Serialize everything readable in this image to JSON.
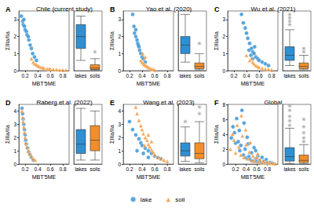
{
  "chart_data": [
    {
      "type": "scatter",
      "panel": "A",
      "title": "Chile (current study)",
      "xlabel": "MBT'5ME",
      "ylabel": "ΣIIIa/IIa",
      "xlim": [
        0.1,
        0.9
      ],
      "xticks": [
        0.2,
        0.4,
        0.6,
        0.8
      ],
      "ylim": [
        0,
        3.5
      ],
      "yticks": [
        0,
        1,
        2,
        3
      ],
      "legend": "bottom",
      "series": [
        {
          "name": "lake",
          "color": "#2f8fd3",
          "marker": "circle",
          "x": [
            0.14,
            0.16,
            0.17,
            0.18,
            0.19,
            0.2,
            0.22,
            0.23,
            0.25,
            0.26,
            0.28,
            0.3,
            0.32,
            0.35,
            0.38
          ],
          "values": [
            3.2,
            2.9,
            2.7,
            3.0,
            2.6,
            2.4,
            2.3,
            2.1,
            2.0,
            1.8,
            1.5,
            1.3,
            1.0,
            0.8,
            0.6
          ]
        },
        {
          "name": "soil",
          "color": "#f28e2b",
          "marker": "triangle",
          "x": [
            0.3,
            0.33,
            0.35,
            0.38,
            0.4,
            0.42,
            0.45,
            0.48,
            0.5,
            0.55,
            0.58,
            0.6,
            0.65,
            0.7,
            0.75,
            0.8,
            0.85
          ],
          "values": [
            0.7,
            0.5,
            0.4,
            0.35,
            0.3,
            0.25,
            0.2,
            0.18,
            0.15,
            0.12,
            0.1,
            0.1,
            0.08,
            0.07,
            0.05,
            0.05,
            0.04
          ]
        }
      ],
      "boxplot": {
        "categories": [
          "lakes",
          "soils"
        ],
        "colors": [
          "#2f8fd3",
          "#f28e2b"
        ],
        "marker": "asterisk",
        "stats": [
          [
            0.6,
            1.3,
            2.0,
            2.7,
            3.2
          ],
          [
            0.04,
            0.07,
            0.15,
            0.35,
            0.7
          ]
        ],
        "outliers": [
          [],
          [
            1.1
          ]
        ]
      }
    },
    {
      "type": "scatter",
      "panel": "B",
      "title": "Yao et al. (2020)",
      "xlabel": "MBT'5ME",
      "ylabel": "ΣIIIa/IIa",
      "xlim": [
        0.1,
        0.9
      ],
      "xticks": [
        0.2,
        0.4,
        0.6,
        0.8
      ],
      "ylim": [
        0,
        3.5
      ],
      "yticks": [
        0,
        1,
        2,
        3
      ],
      "legend": "bottom",
      "series": [
        {
          "name": "lake",
          "color": "#2f8fd3",
          "marker": "circle",
          "x": [
            0.25,
            0.27,
            0.28,
            0.3,
            0.3,
            0.32,
            0.33,
            0.34,
            0.35,
            0.36,
            0.38,
            0.4,
            0.42,
            0.45
          ],
          "values": [
            3.3,
            2.6,
            2.2,
            2.0,
            2.4,
            1.8,
            1.6,
            1.5,
            1.4,
            1.2,
            1.0,
            0.8,
            0.7,
            0.5
          ]
        },
        {
          "name": "soil",
          "color": "#f28e2b",
          "marker": "triangle",
          "x": [
            0.38,
            0.4,
            0.41,
            0.42,
            0.44,
            0.45,
            0.46,
            0.48,
            0.5,
            0.52,
            0.55,
            0.58,
            0.6
          ],
          "values": [
            0.6,
            0.5,
            1.0,
            0.4,
            0.35,
            0.8,
            0.3,
            0.25,
            0.2,
            0.15,
            0.1,
            0.08,
            0.05
          ]
        }
      ],
      "boxplot": {
        "categories": [
          "lakes",
          "soils"
        ],
        "colors": [
          "#2f8fd3",
          "#f28e2b"
        ],
        "marker": "asterisk",
        "stats": [
          [
            0.5,
            1.0,
            1.5,
            2.0,
            3.3
          ],
          [
            0.05,
            0.12,
            0.25,
            0.45,
            1.0
          ]
        ],
        "outliers": [
          [],
          [
            1.6
          ]
        ]
      }
    },
    {
      "type": "scatter",
      "panel": "C",
      "title": "Wu et al. (2021)",
      "xlabel": "MBT'5ME",
      "ylabel": "ΣIIIa/IIa",
      "xlim": [
        0.1,
        0.9
      ],
      "xticks": [
        0.2,
        0.4,
        0.6,
        0.8
      ],
      "ylim": [
        0,
        3.5
      ],
      "yticks": [
        0,
        1,
        2,
        3
      ],
      "legend": "bottom",
      "series": [
        {
          "name": "lake",
          "color": "#2f8fd3",
          "marker": "circle",
          "x": [
            0.32,
            0.35,
            0.38,
            0.4,
            0.42,
            0.44,
            0.45,
            0.47,
            0.48,
            0.5,
            0.5,
            0.52,
            0.53,
            0.55,
            0.58,
            0.6,
            0.65,
            0.7,
            0.75
          ],
          "values": [
            3.3,
            2.8,
            2.5,
            2.2,
            1.9,
            1.2,
            1.6,
            0.9,
            1.3,
            1.1,
            0.7,
            1.0,
            1.4,
            0.8,
            0.7,
            0.6,
            0.5,
            0.4,
            0.3
          ]
        },
        {
          "name": "soil",
          "color": "#f28e2b",
          "marker": "triangle",
          "x": [
            0.4,
            0.45,
            0.48,
            0.5,
            0.52,
            0.55,
            0.58,
            0.6,
            0.65,
            0.7,
            0.75,
            0.8
          ],
          "values": [
            0.9,
            0.6,
            0.7,
            0.5,
            0.4,
            0.3,
            0.25,
            0.2,
            0.15,
            0.1,
            0.08,
            0.05
          ]
        }
      ],
      "boxplot": {
        "categories": [
          "lakes",
          "soils"
        ],
        "colors": [
          "#2f8fd3",
          "#f28e2b"
        ],
        "marker": "asterisk",
        "stats": [
          [
            0.3,
            0.6,
            0.9,
            1.4,
            2.4
          ],
          [
            0.05,
            0.12,
            0.25,
            0.45,
            0.9
          ]
        ],
        "outliers": [
          [
            2.7,
            2.9,
            3.1,
            3.3
          ],
          [
            1.1,
            1.3
          ]
        ]
      }
    },
    {
      "type": "scatter",
      "panel": "D",
      "title": "Raberg et al. (2022)",
      "xlabel": "MBT'5ME",
      "ylabel": "ΣIIIa/IIa",
      "xlim": [
        0.1,
        0.9
      ],
      "xticks": [
        0.2,
        0.4,
        0.6,
        0.8
      ],
      "ylim": [
        0,
        4.5
      ],
      "yticks": [
        0,
        1,
        2,
        3,
        4
      ],
      "legend": "bottom",
      "series": [
        {
          "name": "lake",
          "color": "#2f8fd3",
          "marker": "circle",
          "x": [
            0.15,
            0.16,
            0.17,
            0.18,
            0.19,
            0.2,
            0.21,
            0.22,
            0.24,
            0.26,
            0.28,
            0.3,
            0.33
          ],
          "values": [
            4.2,
            3.8,
            3.4,
            3.0,
            2.6,
            2.2,
            1.8,
            1.5,
            1.2,
            0.9,
            0.7,
            0.5,
            0.3
          ]
        },
        {
          "name": "soil",
          "color": "#f28e2b",
          "marker": "triangle",
          "x": [
            0.15,
            0.16,
            0.17,
            0.18,
            0.19,
            0.2,
            0.21,
            0.23,
            0.25,
            0.27,
            0.3,
            0.33,
            0.36
          ],
          "values": [
            4.0,
            3.5,
            3.2,
            2.8,
            2.4,
            2.0,
            1.6,
            1.3,
            1.0,
            0.8,
            0.6,
            0.4,
            0.3
          ]
        }
      ],
      "boxplot": {
        "categories": [
          "lakes",
          "soils"
        ],
        "colors": [
          "#2f8fd3",
          "#f28e2b"
        ],
        "marker": "asterisk",
        "stats": [
          [
            0.3,
            0.8,
            1.5,
            2.6,
            4.2
          ],
          [
            0.3,
            1.0,
            1.8,
            2.9,
            4.0
          ]
        ],
        "outliers": [
          [],
          []
        ]
      }
    },
    {
      "type": "scatter",
      "panel": "E",
      "title": "Wang et al. (2023)",
      "xlabel": "MBT'5ME",
      "ylabel": "ΣIIIa/IIa",
      "xlim": [
        0.1,
        0.9
      ],
      "xticks": [
        0.2,
        0.4,
        0.6,
        0.8
      ],
      "ylim": [
        0,
        4.5
      ],
      "yticks": [
        0,
        1,
        2,
        3,
        4
      ],
      "legend": "bottom",
      "series": [
        {
          "name": "lake",
          "color": "#2f8fd3",
          "marker": "circle",
          "x": [
            0.2,
            0.25,
            0.3,
            0.32,
            0.35,
            0.38,
            0.4,
            0.42,
            0.45,
            0.5,
            0.5,
            0.55,
            0.6,
            0.65,
            0.7
          ],
          "values": [
            3.2,
            2.6,
            2.2,
            1.0,
            1.9,
            1.6,
            1.4,
            0.8,
            1.2,
            1.0,
            0.5,
            0.8,
            0.6,
            0.5,
            0.4
          ]
        },
        {
          "name": "soil",
          "color": "#f28e2b",
          "marker": "triangle",
          "x": [
            0.3,
            0.32,
            0.35,
            0.38,
            0.4,
            0.42,
            0.44,
            0.45,
            0.48,
            0.5,
            0.5,
            0.52,
            0.55,
            0.55,
            0.58,
            0.6,
            0.65,
            0.7,
            0.75,
            0.8
          ],
          "values": [
            4.3,
            3.8,
            3.3,
            2.9,
            2.6,
            2.3,
            1.4,
            2.0,
            1.8,
            1.5,
            2.2,
            1.3,
            1.1,
            1.7,
            0.9,
            0.7,
            0.5,
            0.4,
            0.3,
            0.2
          ]
        }
      ],
      "boxplot": {
        "categories": [
          "lakes",
          "soils"
        ],
        "colors": [
          "#2f8fd3",
          "#f28e2b"
        ],
        "marker": "asterisk",
        "stats": [
          [
            0.2,
            0.6,
            1.0,
            1.6,
            2.8
          ],
          [
            0.1,
            0.4,
            0.8,
            1.6,
            3.2
          ]
        ],
        "outliers": [
          [
            3.2
          ],
          [
            3.8,
            4.3
          ]
        ]
      }
    },
    {
      "type": "scatter",
      "panel": "F",
      "title": "Global",
      "xlabel": "MBT'5ME",
      "ylabel": "ΣIIIa/IIa",
      "xlim": [
        0.05,
        1.0
      ],
      "xticks": [
        0.2,
        0.4,
        0.6,
        0.8
      ],
      "ylim": [
        0,
        8
      ],
      "yticks": [
        0,
        2,
        4,
        6,
        8
      ],
      "legend": "bottom",
      "series": [
        {
          "name": "lake",
          "color": "#2f8fd3",
          "marker": "circle",
          "x": [
            0.12,
            0.15,
            0.18,
            0.2,
            0.22,
            0.25,
            0.27,
            0.28,
            0.3,
            0.32,
            0.35,
            0.36,
            0.38,
            0.4,
            0.42,
            0.44,
            0.45,
            0.48,
            0.5,
            0.52,
            0.55,
            0.58,
            0.58,
            0.6,
            0.62,
            0.65,
            0.68,
            0.7,
            0.72,
            0.75,
            0.78,
            0.8,
            0.85,
            0.9
          ],
          "values": [
            3.5,
            5.0,
            4.2,
            2.8,
            6.1,
            3.0,
            4.5,
            1.8,
            2.5,
            7.2,
            1.2,
            5.5,
            2.0,
            0.8,
            3.6,
            2.7,
            1.0,
            0.6,
            1.5,
            0.4,
            2.2,
            0.7,
            1.8,
            0.3,
            1.1,
            0.5,
            0.2,
            0.9,
            0.3,
            0.2,
            0.6,
            0.1,
            0.2,
            0.1
          ]
        },
        {
          "name": "soil",
          "color": "#f28e2b",
          "marker": "triangle",
          "x": [
            0.1,
            0.14,
            0.17,
            0.2,
            0.23,
            0.26,
            0.3,
            0.31,
            0.33,
            0.36,
            0.39,
            0.4,
            0.43,
            0.46,
            0.48,
            0.5,
            0.53,
            0.56,
            0.6,
            0.62,
            0.63,
            0.66,
            0.7,
            0.73,
            0.76,
            0.8,
            0.84,
            0.88,
            0.92,
            0.95
          ],
          "values": [
            2.0,
            4.0,
            3.2,
            1.5,
            5.2,
            2.3,
            1.2,
            6.5,
            3.8,
            0.9,
            4.6,
            2.6,
            0.7,
            1.6,
            2.9,
            0.5,
            1.1,
            0.4,
            0.9,
            1.4,
            0.3,
            0.6,
            0.2,
            0.5,
            0.15,
            0.3,
            0.1,
            0.2,
            0.08,
            0.05
          ]
        }
      ],
      "boxplot": {
        "categories": [
          "lakes",
          "soils"
        ],
        "colors": [
          "#2f8fd3",
          "#f28e2b"
        ],
        "marker": "asterisk",
        "stats": [
          [
            0.05,
            0.4,
            1.0,
            2.2,
            4.8
          ],
          [
            0.02,
            0.2,
            0.5,
            1.2,
            2.6
          ]
        ],
        "outliers": [
          [
            5.2,
            5.8,
            6.4,
            7.2,
            7.8
          ],
          [
            3.0,
            3.5,
            4.2,
            5.0,
            6.0
          ]
        ]
      }
    }
  ]
}
